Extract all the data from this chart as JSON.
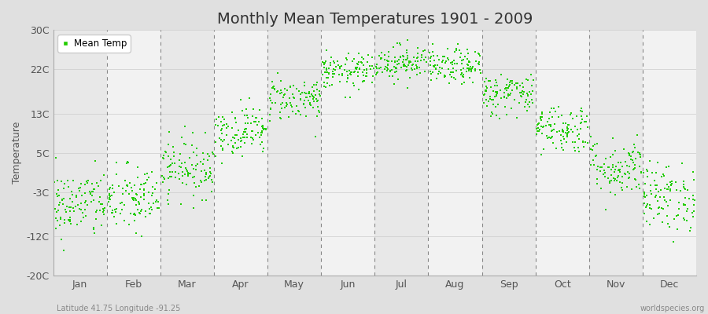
{
  "title": "Monthly Mean Temperatures 1901 - 2009",
  "ylabel": "Temperature",
  "yticks": [
    -20,
    -12,
    -3,
    5,
    13,
    22,
    30
  ],
  "ytick_labels": [
    "-20C",
    "-12C",
    "-3C",
    "5C",
    "13C",
    "22C",
    "30C"
  ],
  "ylim": [
    -20,
    30
  ],
  "months": [
    "Jan",
    "Feb",
    "Mar",
    "Apr",
    "May",
    "Jun",
    "Jul",
    "Aug",
    "Sep",
    "Oct",
    "Nov",
    "Dec"
  ],
  "dot_color": "#22cc00",
  "dot_size": 3,
  "title_fontsize": 14,
  "axis_fontsize": 9,
  "legend_label": "Mean Temp",
  "footer_left": "Latitude 41.75 Longitude -91.25",
  "footer_right": "worldspecies.org",
  "num_years": 109,
  "mean_temps": [
    -5.5,
    -4.5,
    2.0,
    9.5,
    16.0,
    21.5,
    23.5,
    22.5,
    17.0,
    10.0,
    2.0,
    -4.0
  ],
  "std_temps": [
    3.5,
    3.5,
    3.0,
    2.5,
    2.2,
    1.8,
    1.8,
    1.8,
    2.2,
    2.5,
    3.0,
    3.5
  ],
  "band_colors": [
    "#e8e8e8",
    "#f2f2f2"
  ],
  "fig_bg": "#e0e0e0",
  "plot_bg": "#f2f2f2"
}
